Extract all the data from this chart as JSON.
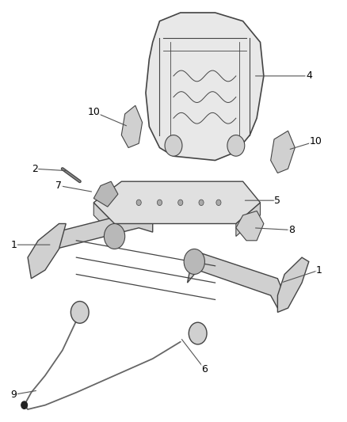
{
  "background_color": "#ffffff",
  "figure_width": 4.38,
  "figure_height": 5.33,
  "dpi": 100,
  "line_color": "#555555",
  "label_fontsize": 9,
  "label_color": "#000000",
  "part_edge_color": "#444444",
  "part_face_light": "#e8e8e8",
  "part_face_mid": "#d0d0d0",
  "part_face_dark": "#b8b8b8"
}
